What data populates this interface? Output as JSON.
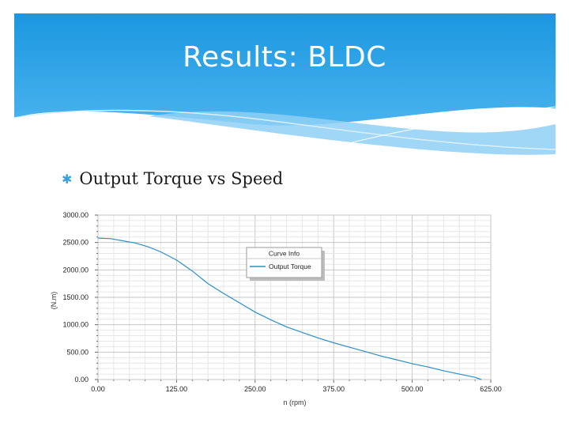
{
  "slide": {
    "title": "Results: BLDC",
    "bullet_icon": "asterisk-bullet-icon",
    "bullet": "Output Torque vs Speed",
    "accent_color": "#1ea0e6"
  },
  "chart_data": {
    "type": "line",
    "title": "",
    "xlabel": "n (rpm)",
    "ylabel": "(N.m)",
    "xlim": [
      0,
      625
    ],
    "ylim": [
      0,
      3000
    ],
    "x_ticks": [
      "0.00",
      "125.00",
      "250.00",
      "375.00",
      "500.00",
      "625.00"
    ],
    "y_ticks": [
      "0.00",
      "500.00",
      "1000.00",
      "1500.00",
      "2000.00",
      "2500.00",
      "3000.00"
    ],
    "grid": true,
    "legend": {
      "title": "Curve Info",
      "placement": "top-center"
    },
    "series": [
      {
        "name": "Output Torque",
        "color": "#2a8fc8",
        "x": [
          0,
          20,
          40,
          60,
          80,
          100,
          125,
          150,
          175,
          200,
          225,
          250,
          275,
          300,
          325,
          350,
          375,
          400,
          425,
          450,
          475,
          500,
          525,
          550,
          575,
          600,
          610
        ],
        "y": [
          2580,
          2570,
          2530,
          2490,
          2420,
          2330,
          2180,
          1980,
          1750,
          1570,
          1400,
          1230,
          1090,
          960,
          860,
          760,
          670,
          590,
          510,
          430,
          360,
          290,
          230,
          160,
          100,
          40,
          0
        ]
      }
    ]
  }
}
